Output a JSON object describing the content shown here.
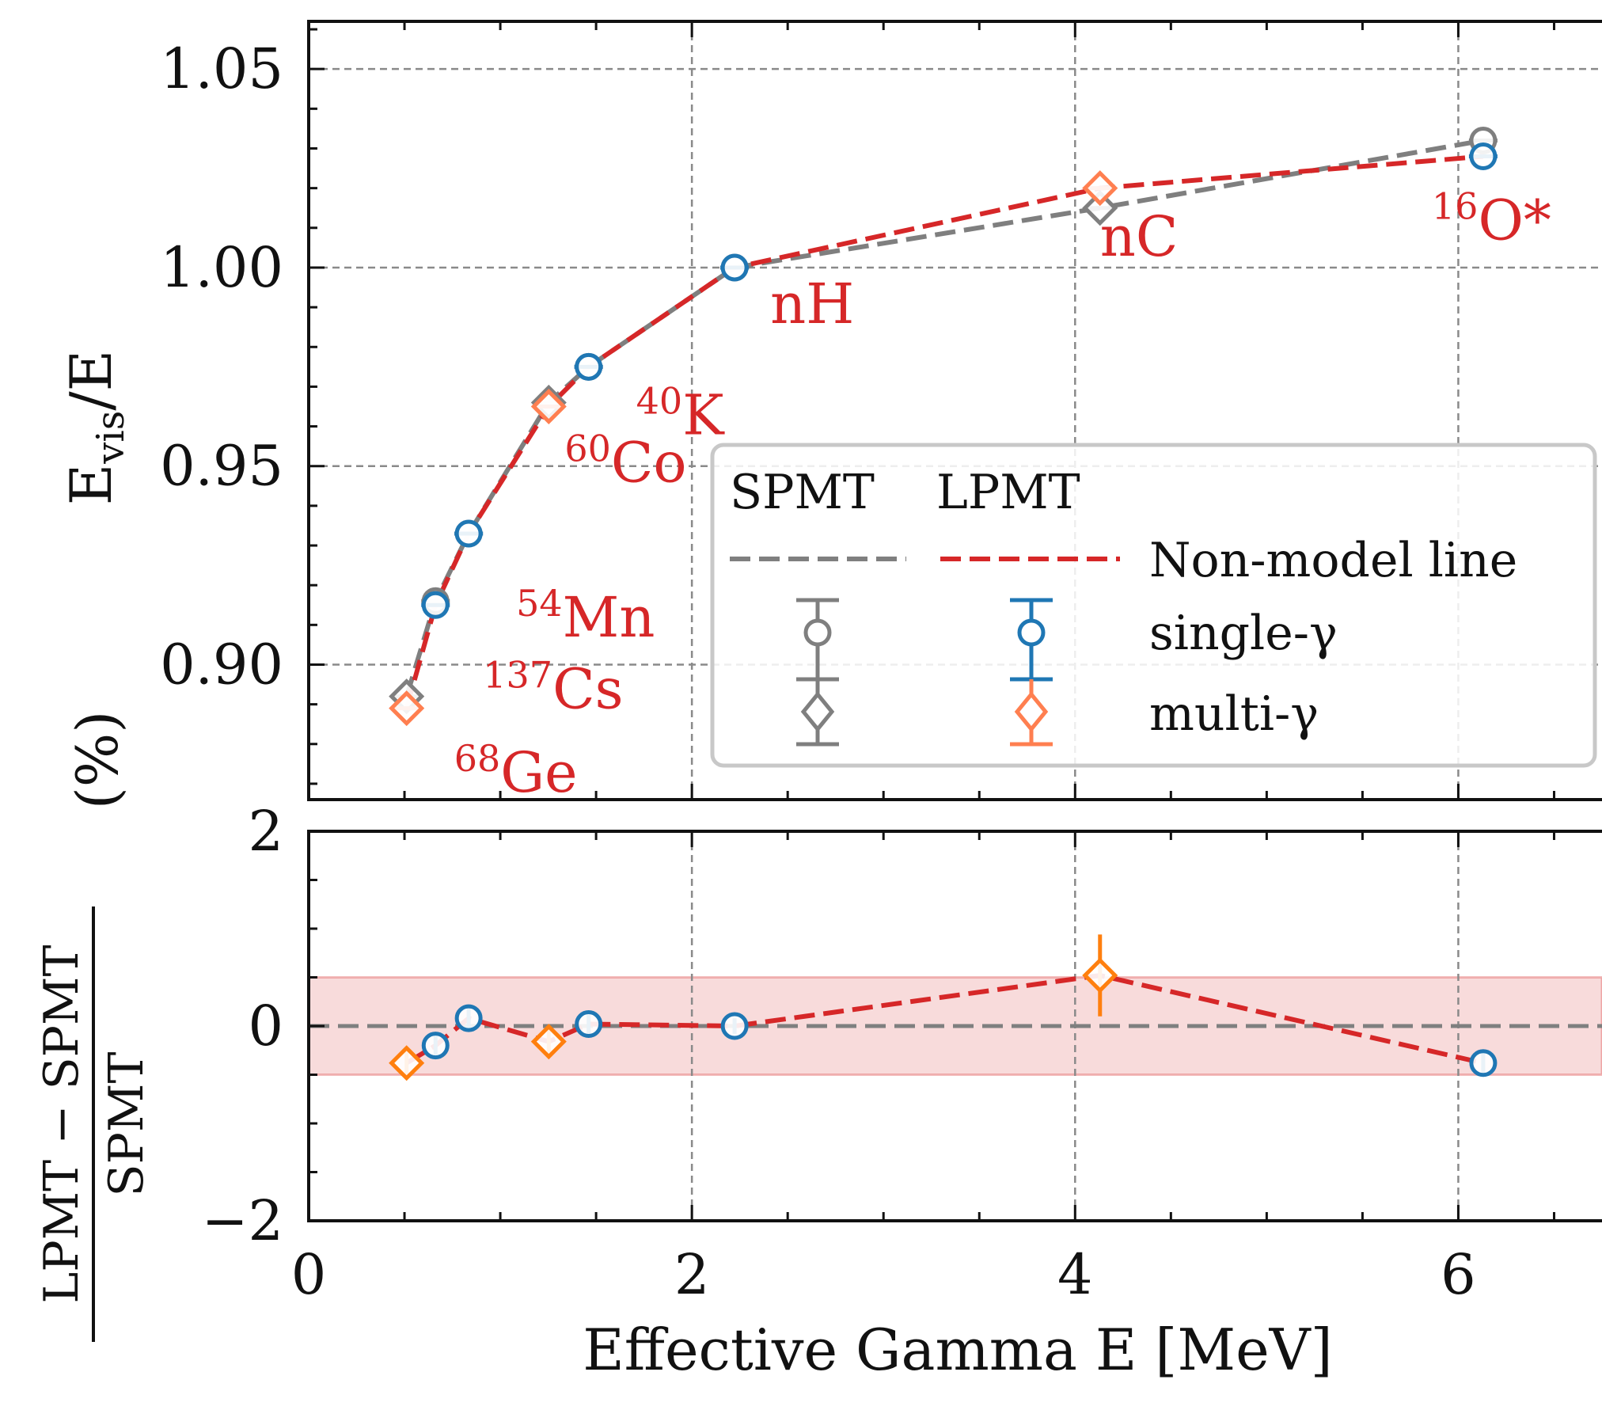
{
  "chart_data": [
    {
      "type": "scatter",
      "ylabel_main": "E",
      "ylabel_sub": "vis",
      "ylabel_tail": "/E",
      "xlim": [
        0,
        6.75
      ],
      "ylim": [
        0.866,
        1.062
      ],
      "grid": true,
      "yticks": [
        0.9,
        0.95,
        1.0,
        1.05
      ],
      "ytick_labels": [
        "0.90",
        "0.95",
        "1.00",
        "1.05"
      ],
      "series": [
        {
          "name": "single-γ",
          "detector": "SPMT",
          "color": "#7f7f7f",
          "marker": "circle",
          "x": [
            0.662,
            0.835,
            1.461,
            2.223,
            6.13
          ],
          "y": [
            0.916,
            0.933,
            0.975,
            1.0,
            1.032
          ]
        },
        {
          "name": "multi-γ",
          "detector": "SPMT",
          "color": "#7f7f7f",
          "marker": "diamond",
          "x": [
            0.511,
            1.253,
            4.13
          ],
          "y": [
            0.892,
            0.966,
            1.015
          ]
        },
        {
          "name": "single-γ",
          "detector": "LPMT",
          "color": "#1f77b4",
          "marker": "circle",
          "x": [
            0.662,
            0.835,
            1.461,
            2.223,
            6.13
          ],
          "y": [
            0.915,
            0.933,
            0.975,
            1.0,
            1.028
          ]
        },
        {
          "name": "multi-γ",
          "detector": "LPMT",
          "color": "#ff7f0e",
          "marker": "diamond",
          "x": [
            0.511,
            1.253,
            4.13
          ],
          "y": [
            0.889,
            0.965,
            1.02
          ]
        }
      ],
      "lines": [
        {
          "detector": "SPMT",
          "color": "#7f7f7f",
          "x": [
            0.511,
            0.662,
            0.835,
            1.253,
            1.461,
            2.223,
            4.13,
            6.13
          ],
          "y": [
            0.892,
            0.916,
            0.933,
            0.966,
            0.975,
            1.0,
            1.015,
            1.032
          ]
        },
        {
          "detector": "LPMT",
          "color": "#d62728",
          "x": [
            0.511,
            0.662,
            0.835,
            1.253,
            1.461,
            2.223,
            4.13,
            6.13
          ],
          "y": [
            0.889,
            0.915,
            0.933,
            0.965,
            0.975,
            1.0,
            1.02,
            1.028
          ]
        }
      ],
      "annotations": [
        {
          "sup": "68",
          "text": "Ge"
        },
        {
          "sup": "137",
          "text": "Cs"
        },
        {
          "sup": "54",
          "text": "Mn"
        },
        {
          "sup": "60",
          "text": "Co"
        },
        {
          "sup": "40",
          "text": "K"
        },
        {
          "sup": "",
          "text": "nH"
        },
        {
          "sup": "",
          "text": "nC"
        },
        {
          "sup": "16",
          "text": "O*"
        }
      ],
      "legend": {
        "placement": "lower-right",
        "header_left": "SPMT",
        "header_right": "LPMT",
        "line_label": "Non-model line",
        "single_label": "single-γ",
        "multi_label": "multi-γ"
      }
    },
    {
      "type": "scatter",
      "xlabel": "Effective Gamma E [MeV]",
      "ylabel_numerator": "LPMT − SPMT",
      "ylabel_denominator": "SPMT",
      "ylabel_unit": "(%)",
      "xlim": [
        0,
        6.75
      ],
      "ylim": [
        -2,
        2
      ],
      "grid": true,
      "xticks": [
        0,
        2,
        4,
        6
      ],
      "xtick_labels": [
        "0",
        "2",
        "4",
        "6"
      ],
      "yticks": [
        -2,
        0,
        2
      ],
      "ytick_labels": [
        "−2",
        "0",
        "2"
      ],
      "band": {
        "y": [
          -0.5,
          0.5
        ],
        "color": "#d62728"
      },
      "zero_line": 0,
      "series": [
        {
          "name": "single-γ",
          "color": "#1f77b4",
          "marker": "circle",
          "x": [
            0.662,
            0.835,
            1.461,
            2.223,
            6.13
          ],
          "y": [
            -0.2,
            0.08,
            0.02,
            0.0,
            -0.38
          ],
          "err": [
            0.1,
            0.12,
            0.1,
            0.08,
            0.12
          ]
        },
        {
          "name": "multi-γ",
          "color": "#ff7f0e",
          "marker": "diamond",
          "x": [
            0.511,
            1.253,
            4.13
          ],
          "y": [
            -0.38,
            -0.16,
            0.52
          ],
          "err": [
            0.15,
            0.15,
            0.42
          ]
        }
      ],
      "line": {
        "color": "#d62728",
        "x": [
          0.511,
          0.662,
          0.835,
          1.253,
          1.461,
          2.223,
          4.13,
          6.13
        ],
        "y": [
          -0.38,
          -0.2,
          0.08,
          -0.16,
          0.02,
          0.0,
          0.52,
          -0.38
        ]
      }
    }
  ]
}
